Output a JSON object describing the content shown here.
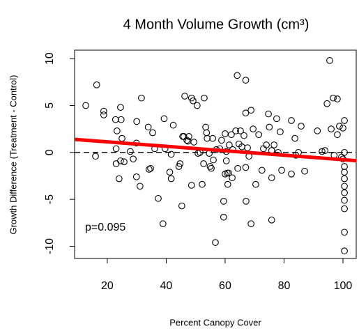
{
  "chart_data": {
    "type": "scatter",
    "title": "4 Month Volume Growth (cm³)",
    "x_label": "Percent Canopy Cover",
    "y_label": "Growth Difference (Treatment - Control)",
    "annotation": "p=0.095",
    "color": "#000000",
    "xlim": [
      8.9,
      104.5
    ],
    "ylim": [
      -11.3,
      10.9
    ],
    "xticks": [
      20,
      40,
      60,
      80,
      100
    ],
    "yticks": [
      -10,
      -5,
      0,
      5,
      10
    ],
    "reference_line": 0,
    "fit": {
      "intercept": 1.6,
      "slope": -0.0237,
      "color": "#ff0000"
    },
    "x": [
      12.7,
      16.4,
      16,
      18.8,
      18.8,
      22.8,
      23.3,
      23,
      23,
      24.5,
      24.7,
      25,
      24.5,
      24,
      25.7,
      27.8,
      28.8,
      29.9,
      29.9,
      31.1,
      31.6,
      30,
      33.9,
      34.2,
      34.7,
      35.4,
      36.1,
      37.3,
      38.9,
      39.3,
      39.6,
      41.2,
      41.7,
      41.7,
      42.4,
      44.3,
      44.7,
      45.3,
      45.6,
      46.3,
      46,
      47,
      47.7,
      47.4,
      48.6,
      49.1,
      49.4,
      48.6,
      50.5,
      50.8,
      51.5,
      52.2,
      52.7,
      52.9,
      53.4,
      53.7,
      53.9,
      54.6,
      54.9,
      55.3,
      55.8,
      56,
      56.7,
      57,
      58.2,
      58.8,
      59.5,
      60,
      59.5,
      60,
      60.4,
      60.4,
      60.7,
      60.9,
      61.2,
      61.4,
      62.1,
      62.6,
      62.4,
      63.6,
      64.1,
      64.3,
      64.7,
      65.2,
      65.7,
      66.4,
      67,
      67,
      67.1,
      67,
      67.6,
      68.1,
      68.8,
      68.8,
      69.5,
      70.4,
      71.4,
      72.5,
      73,
      74,
      74.7,
      75,
      75.8,
      75.8,
      75.8,
      76.6,
      77.5,
      78,
      78.7,
      79.2,
      82.5,
      82.5,
      83.7,
      84,
      84.9,
      85.8,
      87,
      91.3,
      92.9,
      93.9,
      94.6,
      95.5,
      96,
      96.7,
      97,
      98.1,
      98.1,
      98.8,
      99.5,
      100,
      100.5,
      100.5,
      100.5,
      100.5,
      100.5,
      100.5,
      100.5,
      100.5,
      100.5,
      100.5,
      100.5,
      100
    ],
    "y": [
      5.0,
      7.2,
      -0.4,
      4.4,
      4.0,
      3.5,
      2.3,
      0.4,
      -1.2,
      4.8,
      3.5,
      1.5,
      -0.9,
      -2.8,
      -1.0,
      0.1,
      -0.7,
      1.0,
      -2.6,
      -3.6,
      5.8,
      3.3,
      2.7,
      -1.8,
      -1.7,
      2.1,
      0.4,
      -4.9,
      -7.6,
      3.6,
      0.4,
      -2.1,
      -2.8,
      -0.2,
      2.9,
      -1.5,
      -1.2,
      -5.7,
      1.7,
      6.0,
      1.7,
      1.3,
      1.7,
      1.2,
      5.8,
      5.5,
      1.1,
      -3.5,
      5.0,
      -0.1,
      0,
      -3.4,
      -1.2,
      5.8,
      2.7,
      2.1,
      1.5,
      -0.1,
      -1.5,
      -1.7,
      1.5,
      -0.8,
      -9.6,
      0.3,
      0.4,
      1.3,
      -6.9,
      -2.3,
      -5.2,
      2.0,
      0.1,
      -0.9,
      -2.2,
      -3.4,
      -2.2,
      0.8,
      1.9,
      0.3,
      -2.7,
      2.3,
      8.2,
      -1.7,
      0.9,
      2.3,
      0.6,
      1.8,
      7.7,
      4.2,
      -5.2,
      -1.6,
      0.5,
      -0.4,
      4.5,
      -7.6,
      2.5,
      -3.4,
      1.9,
      -1.9,
      0.4,
      0.8,
      4.1,
      2.7,
      0.2,
      -2.7,
      -7.2,
      0.8,
      3.6,
      0,
      2.2,
      -1.9,
      3.4,
      -2.3,
      1.5,
      -0.3,
      0,
      2.8,
      -2.0,
      2.3,
      0.1,
      0.2,
      5.2,
      9.8,
      2.5,
      5.8,
      -0.3,
      5.7,
      1.9,
      2.8,
      -0.5,
      -0.7,
      0,
      -1.5,
      -2.1,
      -2.8,
      -3.6,
      -4.3,
      -5.1,
      -6.0,
      -8.5,
      -10.5,
      3.4,
      2.6
    ]
  }
}
